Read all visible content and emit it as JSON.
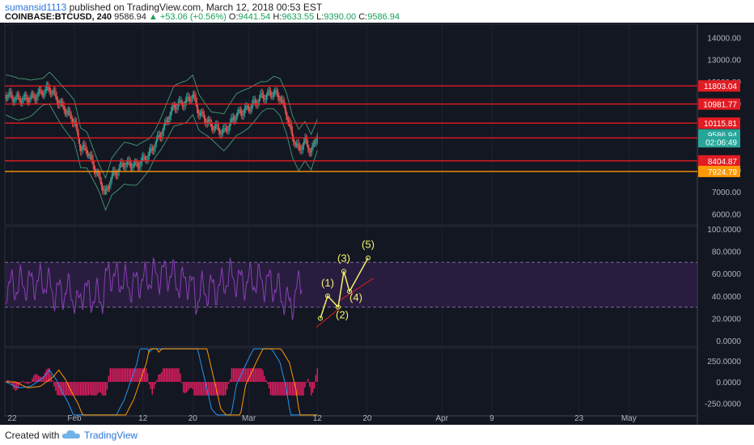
{
  "header": {
    "username": "sumansid1113",
    "published_text": "published on TradingView.com, March 12, 2018 00:53 EST",
    "symbol": "COINBASE:BTCUSD, 240",
    "last": "9586.94",
    "change": "+53.06 (+0.56%)",
    "o_label": "O:",
    "o_value": "9441.54",
    "h_label": "H:",
    "h_value": "9633.55",
    "l_label": "L:",
    "l_value": "9390.00",
    "c_label": "C:",
    "c_value": "9586.94"
  },
  "footer": {
    "created_with": "Created with",
    "brand": "TradingView"
  },
  "colors": {
    "background": "#131722",
    "level_line": "#e31b23",
    "orange_line": "#ff9900",
    "up": "#26a69a",
    "down": "#ef5350",
    "wave": "#f5f26b",
    "rsi": "#8a3fb5",
    "macd_hist": "#e91e63"
  },
  "chart_data": [
    {
      "type": "candlestick",
      "title": "",
      "y_ticks": [
        "14000.00",
        "13000.00",
        "12000.00",
        "11000.00",
        "8000.00",
        "7000.00",
        "6000.00"
      ],
      "ylim": [
        5500,
        14600
      ],
      "horizontal_levels": [
        {
          "value": 11803.04,
          "label": "11803.04",
          "color": "#e31b23"
        },
        {
          "value": 10981.77,
          "label": "10981.77",
          "color": "#e31b23"
        },
        {
          "value": 10115.81,
          "label": "10115.81",
          "color": "#e31b23"
        },
        {
          "value": 9447.28,
          "label": "9447.28",
          "color": "#e31b23"
        },
        {
          "value": 8404.87,
          "label": "8404.87",
          "color": "#e31b23"
        },
        {
          "value": 7924.79,
          "label": "7924.79",
          "color": "#ff9900"
        }
      ],
      "price_tags": [
        {
          "value": 9586.94,
          "label": "9586.94",
          "color": "#26a69a"
        },
        {
          "value": 9270,
          "label": "02:06:49",
          "color": "#26a69a"
        }
      ],
      "x_ticks": [
        "22",
        "Feb",
        "12",
        "20",
        "Mar",
        "12",
        "20",
        "Apr",
        "9",
        "23",
        "May"
      ],
      "close_path": [
        [
          "Jan 21",
          11400
        ],
        [
          "Jan 23",
          11200
        ],
        [
          "Jan 25",
          11250
        ],
        [
          "Jan 28",
          11700
        ],
        [
          "Jan 30",
          10900
        ],
        [
          "Feb 1",
          10200
        ],
        [
          "Feb 2",
          9000
        ],
        [
          "Feb 3",
          8900
        ],
        [
          "Feb 5",
          7600
        ],
        [
          "Feb 6",
          6900
        ],
        [
          "Feb 7",
          7700
        ],
        [
          "Feb 9",
          8300
        ],
        [
          "Feb 11",
          8200
        ],
        [
          "Feb 13",
          8700
        ],
        [
          "Feb 15",
          9700
        ],
        [
          "Feb 17",
          10900
        ],
        [
          "Feb 19",
          11100
        ],
        [
          "Feb 20",
          11400
        ],
        [
          "Feb 21",
          10600
        ],
        [
          "Feb 23",
          10000
        ],
        [
          "Feb 25",
          9700
        ],
        [
          "Feb 27",
          10500
        ],
        [
          "Mar 1",
          10800
        ],
        [
          "Mar 3",
          11300
        ],
        [
          "Mar 5",
          11500
        ],
        [
          "Mar 6",
          11300
        ],
        [
          "Mar 7",
          10600
        ],
        [
          "Mar 8",
          9500
        ],
        [
          "Mar 9",
          8900
        ],
        [
          "Mar 10",
          9300
        ],
        [
          "Mar 11",
          8800
        ],
        [
          "Mar 12",
          9586.94
        ]
      ],
      "low_path": [
        [
          "Jan 21",
          10800
        ],
        [
          "Feb 6",
          6000
        ],
        [
          "Mar 12",
          9390
        ]
      ]
    },
    {
      "type": "line",
      "title": "",
      "y_ticks": [
        "100.0000",
        "80.0000",
        "60.0000",
        "40.0000",
        "20.0000",
        "0.0000"
      ],
      "ylim": [
        -5,
        102
      ],
      "bands": [
        70,
        30
      ],
      "wave_points": [
        {
          "label": "(1)",
          "value": 40
        },
        {
          "label": "(2)",
          "value": 30
        },
        {
          "label": "(3)",
          "value": 62
        },
        {
          "label": "(4)",
          "value": 44
        },
        {
          "label": "(5)",
          "value": 74
        }
      ],
      "wave_start": 20
    },
    {
      "type": "bar",
      "title": "",
      "y_ticks": [
        "250.0000",
        "0.0000",
        "-250.0000"
      ],
      "ylim": [
        -400,
        400
      ]
    }
  ]
}
